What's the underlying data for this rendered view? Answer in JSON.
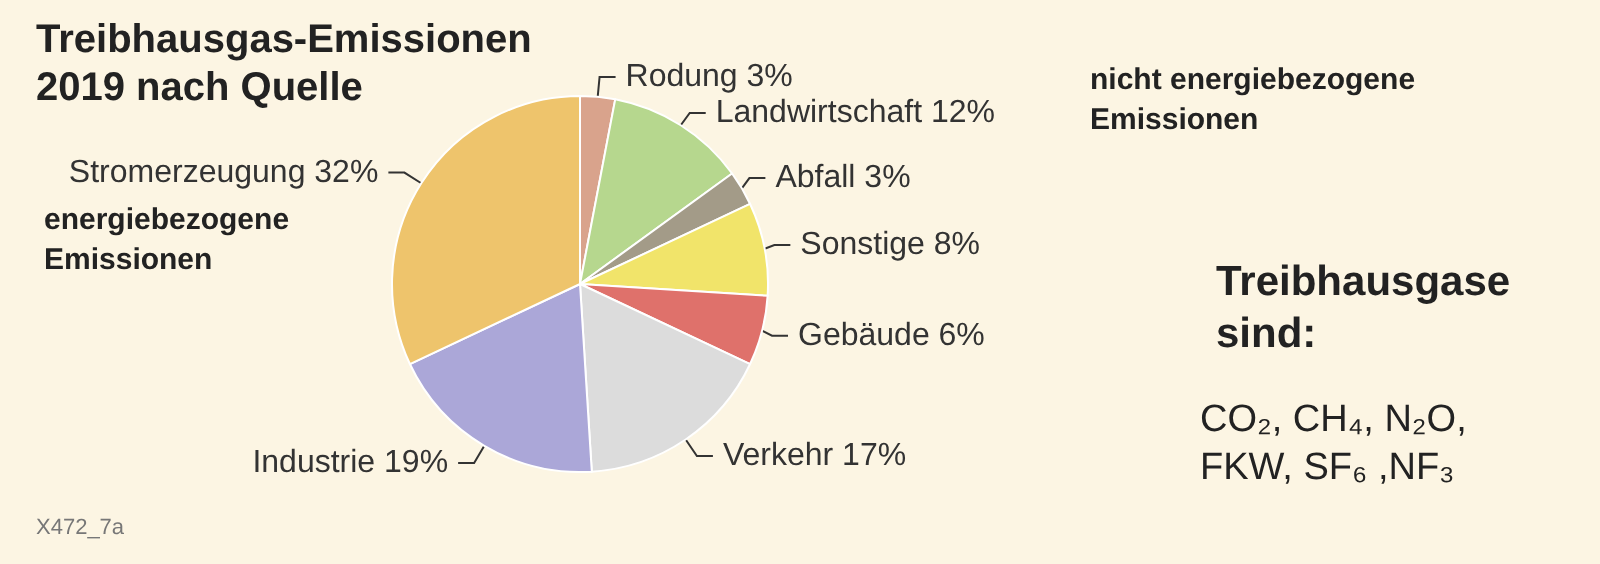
{
  "chart_data": {
    "type": "pie",
    "title": "Treibhausgas-Emissionen 2019 nach Quelle",
    "categories": [
      "Rodung",
      "Landwirtschaft",
      "Abfall",
      "Sonstige",
      "Gebäude",
      "Verkehr",
      "Industrie",
      "Stromerzeugung"
    ],
    "values": [
      3,
      12,
      3,
      8,
      6,
      17,
      19,
      32
    ],
    "value_labels": [
      "3%",
      "12%",
      "3%",
      "8%",
      "6%",
      "17%",
      "19%",
      "32%"
    ],
    "colors": [
      "#d9a38c",
      "#b6d78e",
      "#a39b88",
      "#f1e46a",
      "#df716b",
      "#dcdcdc",
      "#aba7d8",
      "#eec46c"
    ],
    "annotations": [
      "energiebezogene Emissionen",
      "nicht energiebezogene Emissionen",
      "Treibhausgase sind:",
      "CO₂, CH₄, N₂O, FKW, SF₆ ,NF₃",
      "X472_7a"
    ],
    "legend": false
  }
}
